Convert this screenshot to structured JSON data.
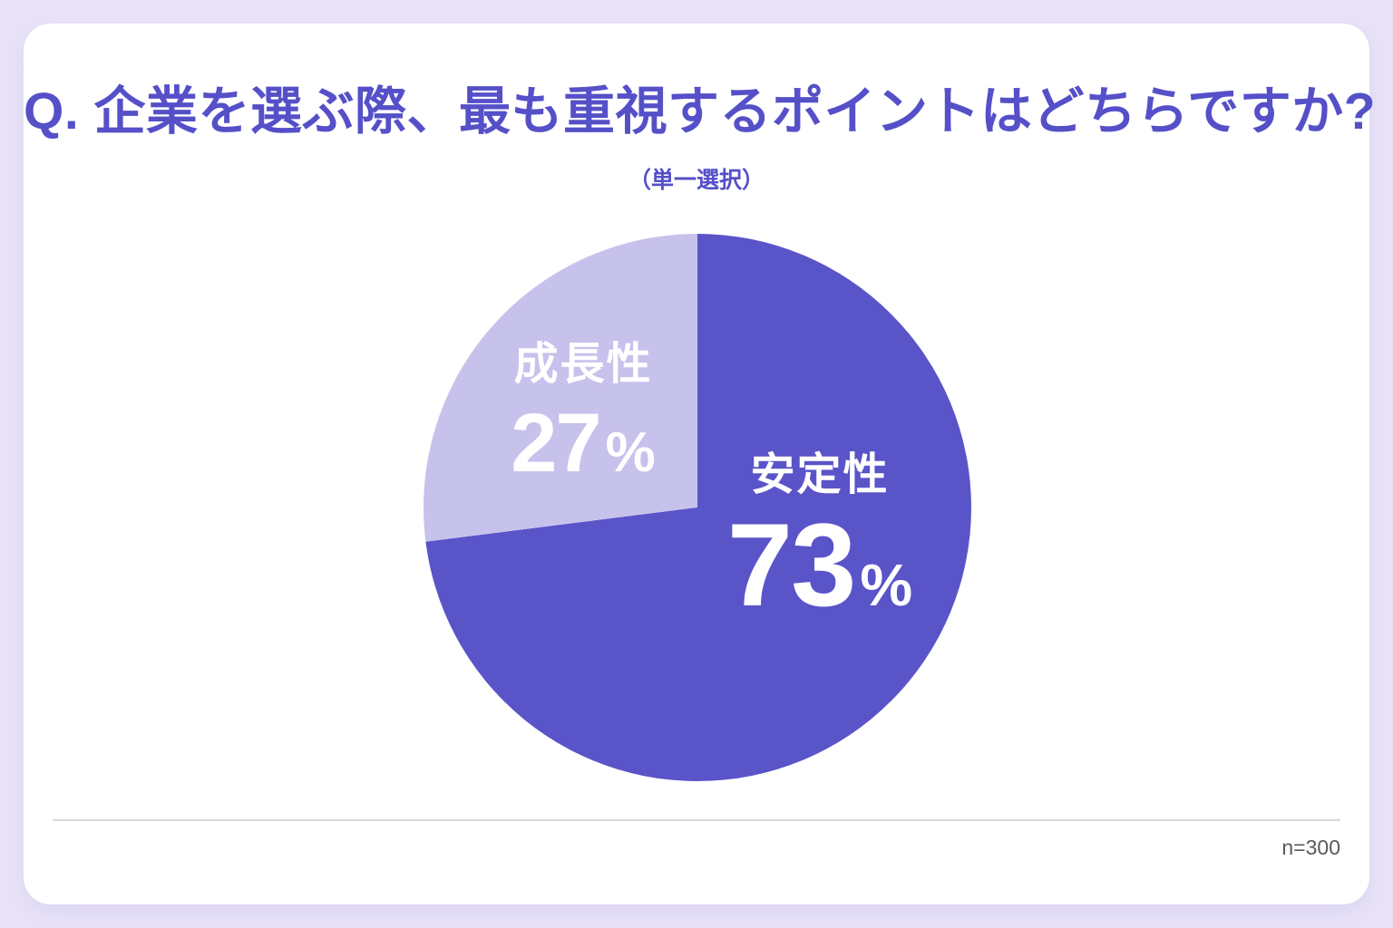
{
  "chart_data": {
    "type": "pie",
    "title": "Q. 企業を選ぶ際、最も重視するポイントはどちらですか?",
    "subtitle": "（単一選択）",
    "sample_note": "n=300",
    "start_angle_deg": 0,
    "direction": "clockwise",
    "legend_position": "none (labels inside slices)",
    "slices": [
      {
        "label": "安定性",
        "value": 73,
        "unit": "%",
        "color": "#5A54C9"
      },
      {
        "label": "成長性",
        "value": 27,
        "unit": "%",
        "color": "#C7C2EC"
      }
    ],
    "colors": {
      "background": "#E9E3F9",
      "card": "#FFFFFF",
      "title_text": "#5550C8",
      "slice_label_text": "#FFFFFF",
      "divider": "#D8D7DB",
      "sample_note_text": "#5A5A5E"
    }
  }
}
